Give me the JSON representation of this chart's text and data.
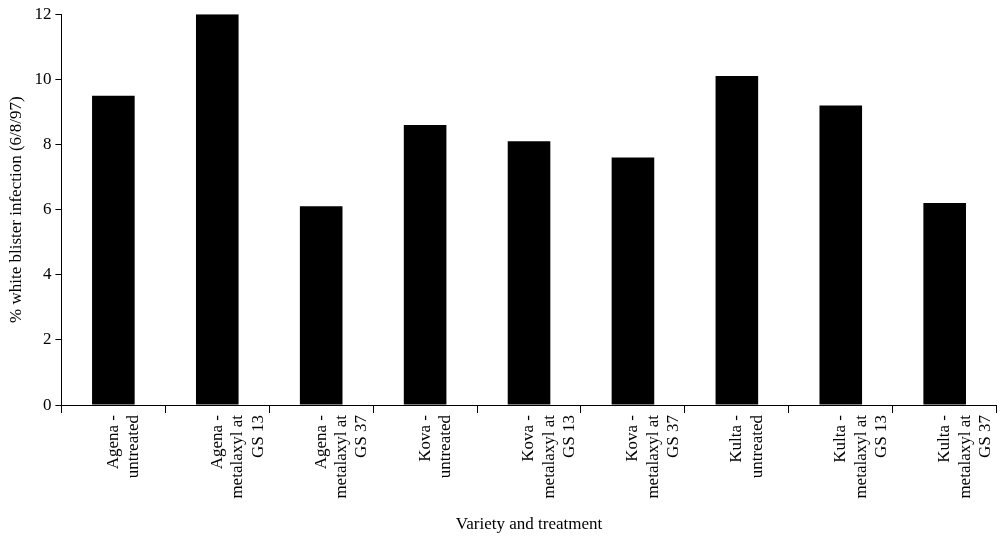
{
  "chart_data": {
    "type": "bar",
    "xlabel": "Variety and treatment",
    "ylabel": "% white blister infection (6/8/97)",
    "categories": [
      "Agena - untreated",
      "Agena - metalaxyl at GS 13",
      "Agena - metalaxyl at GS 37",
      "Kova - untreated",
      "Kova - metalaxyl at GS 13",
      "Kova - metalaxyl at GS 37",
      "Kulta - untreated",
      "Kulta - metalaxyl at GS 13",
      "Kulta - metalaxyl at GS 37"
    ],
    "values": [
      9.5,
      12.0,
      6.1,
      8.6,
      8.1,
      7.6,
      10.1,
      9.2,
      6.2
    ],
    "color": "#000000",
    "ylim": [
      0,
      12
    ],
    "yticks": [
      0,
      2,
      4,
      6,
      8,
      10,
      12
    ],
    "grid": false,
    "legend": false
  }
}
